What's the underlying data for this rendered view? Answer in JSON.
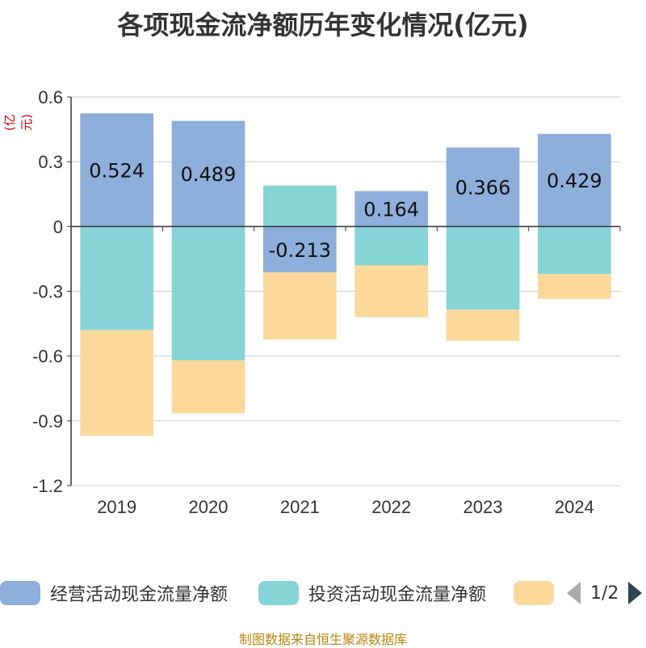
{
  "title": "各项现金流净额历年变化情况(亿元)",
  "unit_label": "(亿元)",
  "legend": {
    "items": [
      {
        "label": "经营活动现金流量净额",
        "color": "#8eaedb"
      },
      {
        "label": "投资活动现金流量净额",
        "color": "#86d4d6"
      },
      {
        "label": "",
        "color": "#fdd89b"
      }
    ],
    "pager": "1/2"
  },
  "source": "制图数据来自恒生聚源数据库",
  "chart_data": {
    "type": "bar",
    "stacked": true,
    "title": "各项现金流净额历年变化情况(亿元)",
    "ylabel": "(亿元)",
    "categories": [
      "2019",
      "2020",
      "2021",
      "2022",
      "2023",
      "2024"
    ],
    "ylim": [
      -1.2,
      0.6
    ],
    "yticks": [
      0.6,
      0.3,
      0,
      -0.3,
      -0.6,
      -0.9,
      -1.2
    ],
    "ytick_labels": [
      "0.6",
      "0.3",
      "0",
      "-0.3",
      "-0.6",
      "-0.9",
      "-1.2"
    ],
    "grid": true,
    "legend_position": "bottom",
    "series": [
      {
        "name": "经营活动现金流量净额",
        "color": "#8eaedb",
        "values": [
          0.524,
          0.489,
          -0.213,
          0.164,
          0.366,
          0.429
        ],
        "data_labels": [
          "0.524",
          "0.489",
          "-0.213",
          "0.164",
          "0.366",
          "0.429"
        ]
      },
      {
        "name": "投资活动现金流量净额",
        "color": "#86d4d6",
        "values": [
          -0.48,
          -0.62,
          0.19,
          -0.18,
          -0.385,
          -0.22
        ]
      },
      {
        "color": "#fdd89b",
        "values": [
          -0.49,
          -0.245,
          -0.31,
          -0.24,
          -0.145,
          -0.115
        ]
      }
    ]
  }
}
